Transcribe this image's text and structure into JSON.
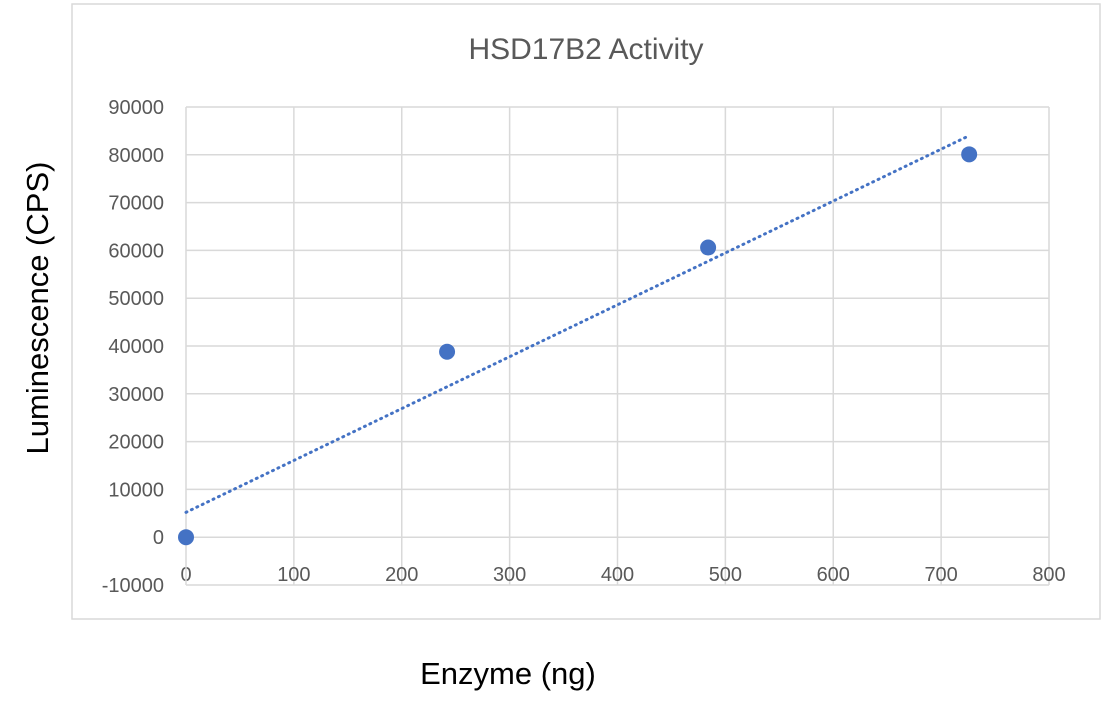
{
  "chart_data": {
    "type": "scatter",
    "title": "HSD17B2 Activity",
    "xlabel": "Enzyme (ng)",
    "ylabel": "Luminescence (CPS)",
    "xlim": [
      0,
      800
    ],
    "ylim": [
      -10000,
      90000
    ],
    "x_ticks": [
      "0",
      "100",
      "200",
      "300",
      "400",
      "500",
      "600",
      "700",
      "800"
    ],
    "y_ticks": [
      "-10000",
      "0",
      "10000",
      "20000",
      "30000",
      "40000",
      "50000",
      "60000",
      "70000",
      "80000",
      "90000"
    ],
    "grid": true,
    "legend": "none",
    "series": [
      {
        "x": [
          0,
          242,
          484,
          726
        ],
        "y": [
          0,
          38800,
          60600,
          80100
        ]
      }
    ],
    "trendline": {
      "type": "linear",
      "style": "dotted",
      "x": [
        0,
        726
      ],
      "y": [
        5200,
        84000
      ]
    },
    "colors": {
      "marker": "#4472C4",
      "trendline": "#4472C4",
      "grid": "#D9D9D9",
      "text": "#595959"
    }
  }
}
